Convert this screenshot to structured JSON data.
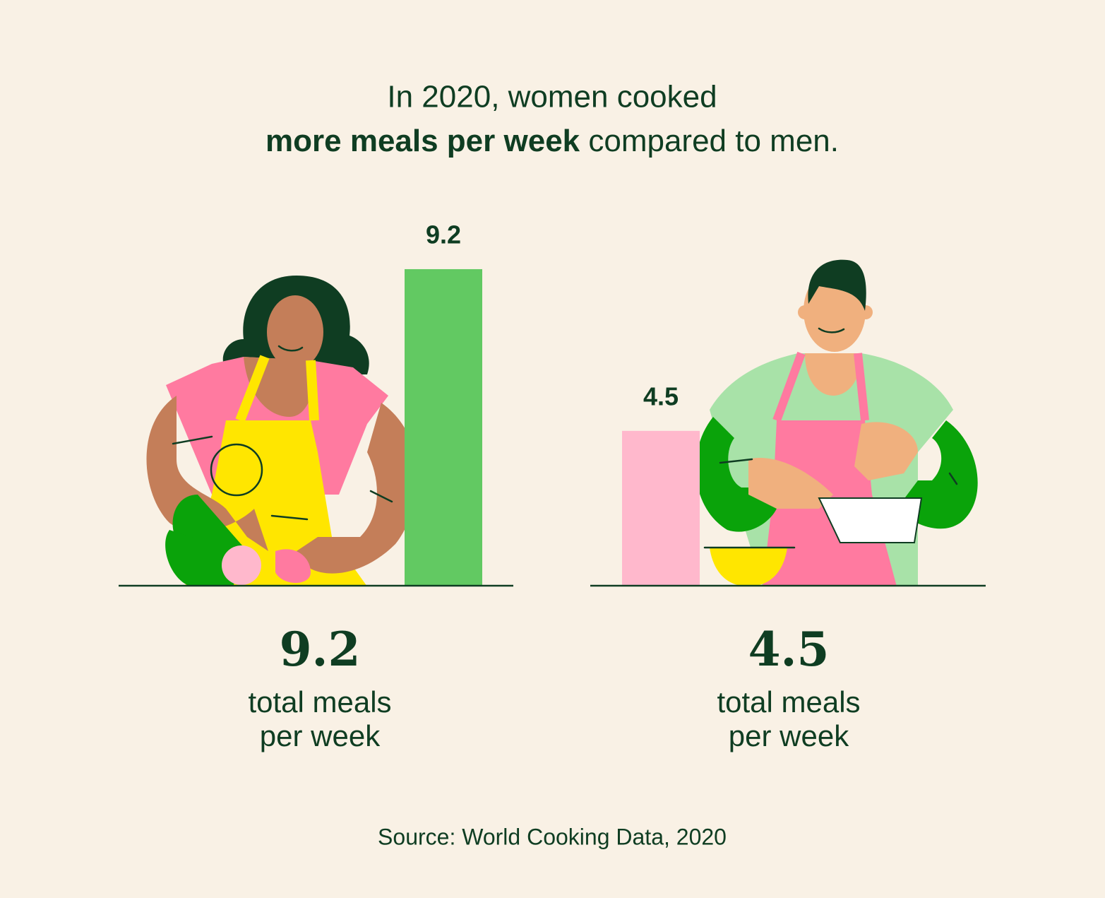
{
  "chart_data": {
    "type": "bar",
    "title": {
      "line1": "In 2020, women cooked",
      "bold": "more meals per week",
      "rest": " compared to men."
    },
    "categories": [
      null,
      null
    ],
    "values": [
      9.2,
      4.5
    ],
    "colors": [
      "#62c962",
      "#ffb8cc"
    ],
    "caption_lines": [
      "total meals",
      "per week"
    ],
    "source": "Source: World Cooking Data, 2020"
  }
}
